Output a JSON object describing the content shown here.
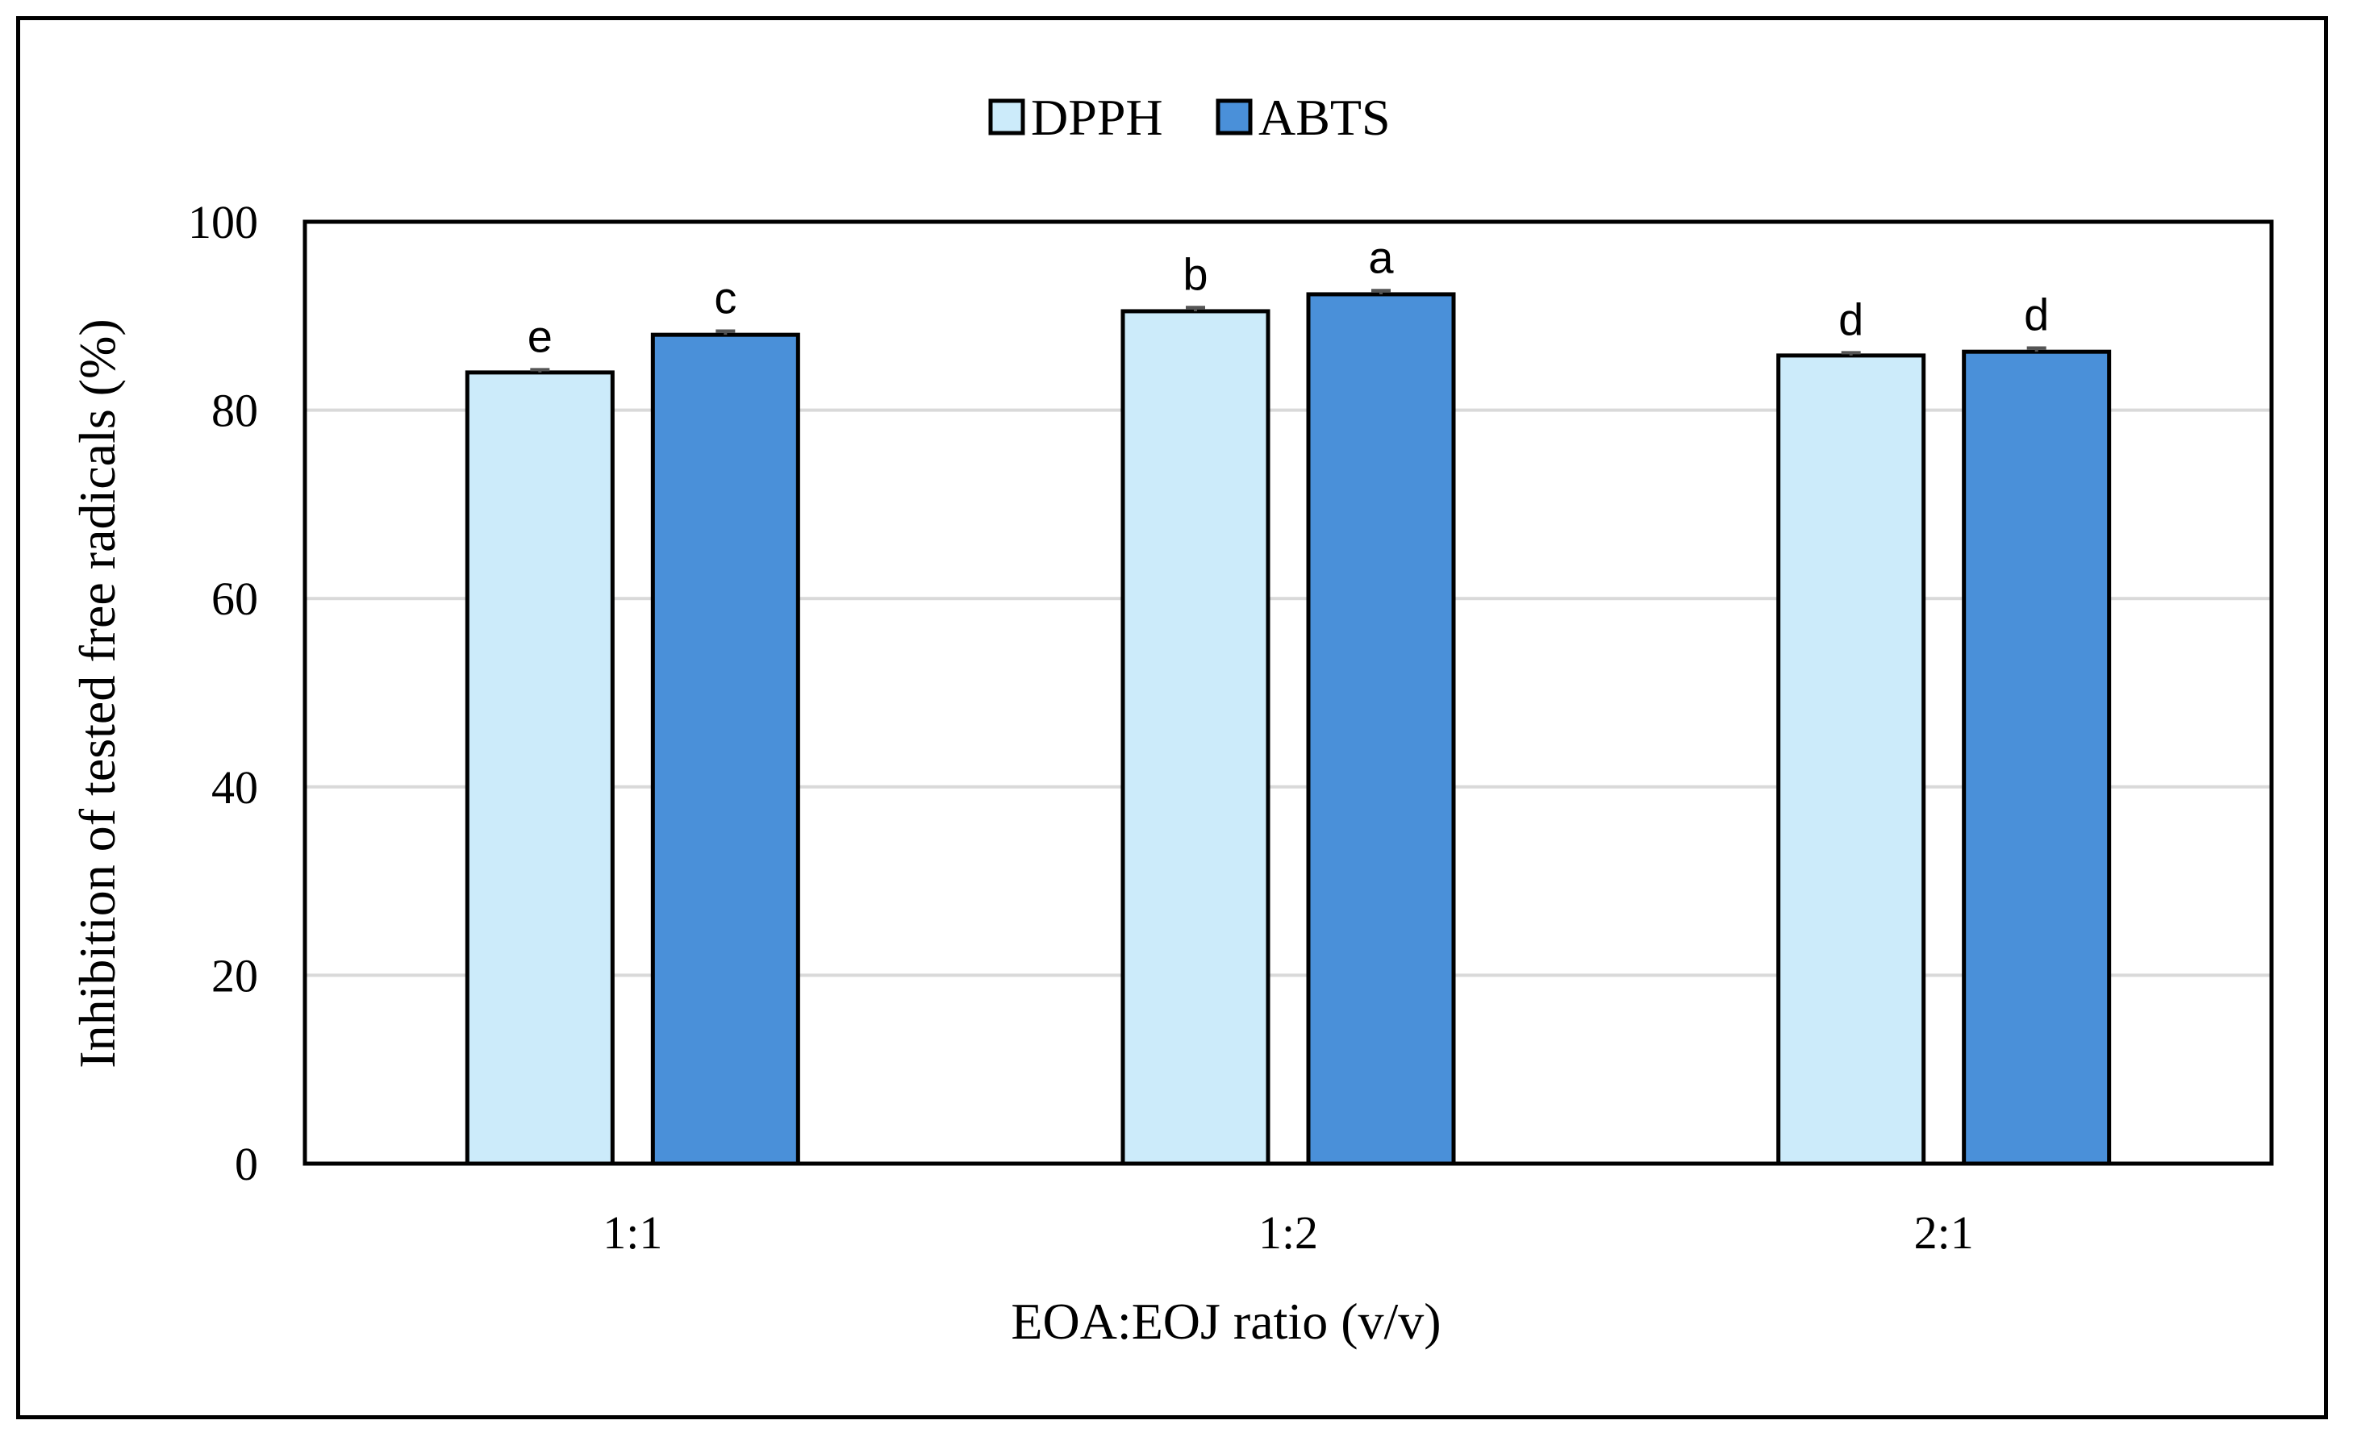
{
  "chart_data": {
    "type": "bar",
    "title": "",
    "xlabel": "EOA:EOJ ratio (v/v)",
    "ylabel": "Inhibition of tested free radicals (%)",
    "ylim": [
      0,
      100
    ],
    "yticks": [
      "0",
      "20",
      "40",
      "60",
      "80",
      "100"
    ],
    "categories": [
      "1:1",
      "1:2",
      "2:1"
    ],
    "series": [
      {
        "name": "DPPH",
        "color": "#CCEBFA",
        "values": [
          84.0,
          90.5,
          85.8
        ],
        "errors": [
          0.3,
          0.4,
          0.3
        ],
        "letters": [
          "e",
          "b",
          "d"
        ]
      },
      {
        "name": "ABTS",
        "color": "#4A90D9",
        "values": [
          88.0,
          92.3,
          86.2
        ],
        "errors": [
          0.4,
          0.4,
          0.4
        ],
        "letters": [
          "c",
          "a",
          "d"
        ]
      }
    ],
    "grid": true,
    "legend_position": "top-center"
  }
}
